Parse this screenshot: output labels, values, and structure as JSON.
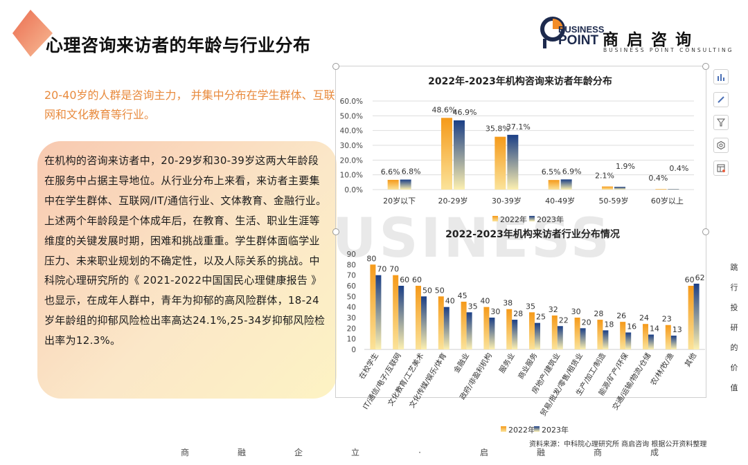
{
  "page": {
    "title": "心理咨询来访者的年龄与行业分布",
    "subtitle": "20-40岁的人群是咨询主力， 并集中分布在学生群体、互联网和文化教育等行业。",
    "body_paragraphs": [
      "在机构的咨询来访者中，20-29岁和30-39岁这两大年龄段在服务中占据主导地位。从行业分布上来看，来访者主要集中在学生群体、互联网/IT/通信行业、文体教育、金融行业。",
      "上述两个年龄段是个体成年后，在教育、生活、职业生涯等维度的关键发展时期，困难和挑战重重。学生群体面临学业压力、未来职业规划的不确定性，以及人际关系的挑战。中科院心理研究所的《 2021-2022中国国民心理健康报告 》也显示，在成年人群中，青年为抑郁的高风险群体，18-24岁年龄组的抑郁风险检出率高达24.1%,25-34岁抑郁风险检出率为12.3%。"
    ],
    "source": "资料来源：中科院心理研究所  商启咨询 根据公开资料整理",
    "footer_chars": [
      "商",
      "融",
      "企",
      "立",
      "·",
      "启",
      "融",
      "商",
      "成"
    ],
    "side_note": "跳行投研的价值",
    "watermark": "USINESS"
  },
  "logo": {
    "line1": "BUSINESS",
    "line2": "POINT",
    "cn": "商启咨询",
    "en": "BUSINESS POINT CONSULTING",
    "accent": "#f28c28",
    "navy": "#1d2a4d"
  },
  "colors": {
    "orange_top": "#f59a1a",
    "orange_bottom": "#fbe39a",
    "blue_top": "#1b3f86",
    "blue_bottom": "#fdf0b0",
    "title_red": "#e95e3e"
  },
  "toolbar": [
    "bar-chart-icon",
    "brush-icon",
    "filter-icon",
    "settings-icon",
    "table-icon"
  ],
  "chart_data": [
    {
      "type": "bar",
      "title": "2022年-2023年机构咨询来访者年龄分布",
      "categories": [
        "20岁以下",
        "20-29岁",
        "30-39岁",
        "40-49岁",
        "50-59岁",
        "60岁以上"
      ],
      "series": [
        {
          "name": "2022年",
          "values": [
            6.6,
            48.6,
            35.8,
            6.5,
            2.1,
            0.4
          ],
          "labels": [
            "6.6%",
            "48.6%",
            "35.8%",
            "6.5%",
            "2.1%",
            "0.4%"
          ]
        },
        {
          "name": "2023年",
          "values": [
            6.8,
            46.9,
            37.1,
            6.9,
            1.9,
            0.4
          ],
          "labels": [
            "6.8%",
            "46.9%",
            "37.1%",
            "6.9%",
            "1.9%",
            "0.4%"
          ]
        }
      ],
      "ylim": [
        0,
        60
      ],
      "yticks": [
        "0.0%",
        "10.0%",
        "20.0%",
        "30.0%",
        "40.0%",
        "50.0%",
        "60.0%"
      ],
      "grid": true,
      "legend": "bottom"
    },
    {
      "type": "bar",
      "title": "2022-2023年机构来访者行业分布情况",
      "categories": [
        "在校学生",
        "IT/通信/电子/互联网",
        "文化教育/工艺美术",
        "文化传媒/娱乐/体育",
        "金融业",
        "政府/非盈利机构",
        "服务业",
        "商业服务",
        "房地产/建筑业",
        "贸易/批发/零售/租赁业",
        "生产/加工/制造",
        "能源/矿产/环保",
        "交通/运输/物流/仓储",
        "农/林/牧/渔",
        "其他"
      ],
      "series": [
        {
          "name": "2022年",
          "values": [
            80,
            70,
            60,
            50,
            45,
            40,
            38,
            35,
            32,
            30,
            28,
            26,
            24,
            23,
            60
          ]
        },
        {
          "name": "2023年",
          "values": [
            70,
            60,
            50,
            40,
            35,
            30,
            28,
            25,
            22,
            20,
            18,
            16,
            14,
            13,
            62
          ]
        }
      ],
      "ylim": [
        0,
        90
      ],
      "yticks": [
        "0",
        "10",
        "20",
        "30",
        "40",
        "50",
        "60",
        "70",
        "80",
        "90"
      ],
      "grid": false,
      "legend": "bottom"
    }
  ]
}
